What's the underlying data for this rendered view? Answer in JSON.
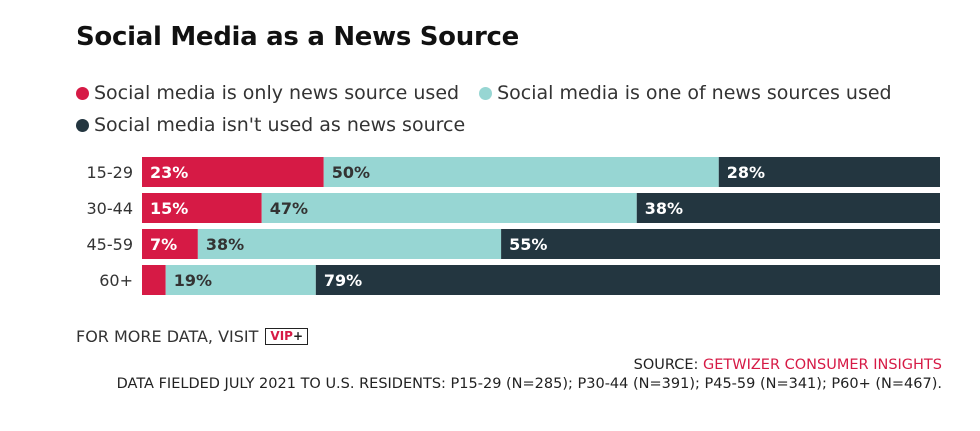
{
  "title": "Social Media as a News Source",
  "legend": [
    {
      "label": "Social media is only news source used",
      "color": "#d61a45"
    },
    {
      "label": "Social media is one of news sources used",
      "color": "#97d6d3"
    },
    {
      "label": "Social media isn't used as news source",
      "color": "#233640"
    }
  ],
  "chart_data": {
    "type": "bar",
    "orientation": "horizontal",
    "stacked": true,
    "title": "Social Media as a News Source",
    "categories": [
      "15-29",
      "30-44",
      "45-59",
      "60+"
    ],
    "series": [
      {
        "name": "Social media is only news source used",
        "values": [
          23,
          15,
          7,
          3
        ],
        "labels": [
          "23%",
          "15%",
          "7%",
          ""
        ],
        "color": "#d61a45",
        "label_color": "#ffffff"
      },
      {
        "name": "Social media is one of news sources used",
        "values": [
          50,
          47,
          38,
          19
        ],
        "labels": [
          "50%",
          "47%",
          "38%",
          "19%"
        ],
        "color": "#97d6d3",
        "label_color": "#333333"
      },
      {
        "name": "Social media isn't used as news source",
        "values": [
          28,
          38,
          55,
          79
        ],
        "labels": [
          "28%",
          "38%",
          "55%",
          "79%"
        ],
        "color": "#233640",
        "label_color": "#ffffff"
      }
    ],
    "xlim": [
      0,
      100
    ],
    "grid": false,
    "legend_position": "top-left"
  },
  "footer": {
    "visit_text": "FOR MORE DATA, VISIT",
    "vip_text": "VIP",
    "vip_plus": "+",
    "source_prefix": "SOURCE: ",
    "source_name": "GETWIZER CONSUMER INSIGHTS",
    "fielded": "DATA FIELDED JULY 2021 TO U.S. RESIDENTS: P15-29 (N=285); P30-44 (N=391); P45-59 (N=341); P60+ (N=467)."
  }
}
